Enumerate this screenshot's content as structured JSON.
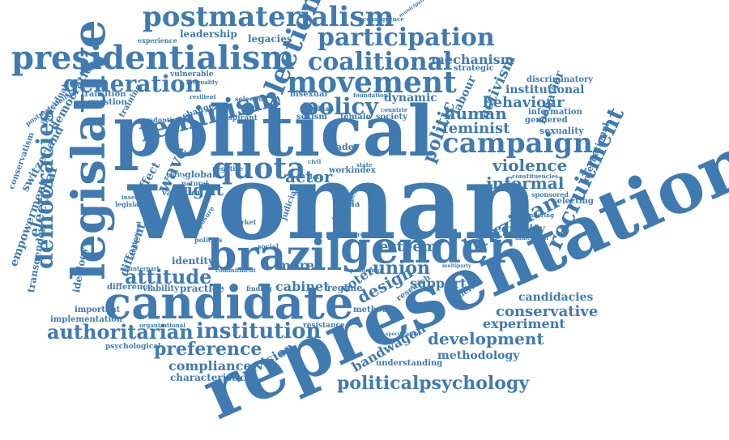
{
  "colors": {
    "word": "#3f7ab0",
    "background": "#ffffff"
  },
  "words": {
    "w_woman": "woman",
    "w_representation": "representation",
    "w_political": "political",
    "w_candidate": "candidate",
    "w_legislative": "legislative",
    "w_gender": "gender",
    "w_brazil": "brazil",
    "w_presidentialism": "presidentialism",
    "w_postmaterialism": "postmaterialism",
    "w_participation": "participation",
    "w_coalitional": "coalitional",
    "w_movement": "movement",
    "w_election": "election",
    "w_feminism": "feminism",
    "w_generation": "generation",
    "w_policy": "policy",
    "w_campaign": "campaign",
    "w_quota": "quota",
    "w_institution": "institution",
    "w_authoritarian": "authoritarian",
    "w_politicalpsychology": "politicalpsychology",
    "w_preference": "preference",
    "w_development": "development",
    "w_democracies": "democracies",
    "w_attitude": "attitude",
    "w_recruitment": "recruitment",
    "w_brazilian": "brazilian",
    "w_violence": "violence",
    "w_informal": "informal",
    "w_right": "right",
    "w_actor": "actor",
    "w_wave": "wave",
    "w_feminist": "feminist",
    "w_human": "human",
    "w_behaviour": "behaviour",
    "w_institutional": "institutional",
    "w_mechanism": "mechanism",
    "w_esteem": "esteem",
    "w_union": "union",
    "w_support": "support",
    "w_design": "design",
    "w_voter": "voter",
    "w_conservative": "conservative",
    "w_candidacies": "candidacies",
    "w_experiment": "experiment",
    "w_bandwagon": "bandwagon",
    "w_compliance": "compliance",
    "w_revision": "revision",
    "w_characteristic": "characteristic",
    "w_methodology": "methodology",
    "w_understanding": "understanding",
    "w_cabinet": "cabinet",
    "w_more": "more",
    "w_identity": "identity",
    "w_different": "different",
    "w_practice": "practice",
    "w_viability": "viability",
    "w_difference": "difference",
    "w_important": "important",
    "w_implementation": "implementation",
    "w_psychological": "psychological",
    "w_organizational": "organizational",
    "w_resistance": "resistance",
    "w_regime": "regime",
    "w_equality": "equality",
    "w_politic": "politic",
    "w_activism": "activism",
    "w_labour": "labour",
    "w_behavior": "behavior",
    "w_sexuality": "sexuality",
    "w_gendered": "gendered",
    "w_information": "information",
    "w_discriminatory": "discriminatory",
    "w_strategic": "strategic",
    "w_dynamic": "dynamic",
    "w_bisexual": "bisexual",
    "w_sexism": "sexism",
    "w_lesbian": "lesbian",
    "w_female": "female",
    "w_society": "society",
    "w_trade": "trade",
    "w_global": "global",
    "w_negative": "negative",
    "w_natural": "natural",
    "w_parity": "parity",
    "w_leadership": "leadership",
    "w_legacies": "legacies",
    "w_consequence": "consequence",
    "w_experience": "experience",
    "w_vulnerable": "vulnerable",
    "w_transition": "transition",
    "w_question": "question",
    "w_training": "training",
    "w_change": "change",
    "w_adoption": "adoption",
    "w_aspirant": "aspirant",
    "w_selection": "selection",
    "w_democratic": "democratic",
    "w_individual": "individual",
    "w_postmaterialist": "postmaterialist",
    "w_switzerland": "switzerland",
    "w_conservatism": "conservatism",
    "w_empowerment": "empowerment",
    "w_electoral": "electoral",
    "w_transgender": "transgender",
    "w_ideology": "ideology",
    "w_effect": "effect",
    "w_variation": "variation",
    "w_legislator": "legislator",
    "w_insecurity": "insecurity",
    "w_exposure": "exposure",
    "w_self": "self",
    "w_data": "data",
    "w_workindex": "workindex",
    "w_india": "india",
    "w_international": "international",
    "w_sponsored": "sponsored",
    "w_selecting": "selecting",
    "w_america": "america",
    "w_dimension": "dimension",
    "w_gendering": "gendering",
    "w_constituencies": "constituencies",
    "w_policies": "policies",
    "w_market": "market",
    "w_finding": "finding",
    "w_social": "social",
    "w_judicial": "judicial",
    "w_civil": "civil",
    "w_research": "research",
    "w_method": "method",
    "w_strength": "strength",
    "w_counterpart": "counterpart",
    "w_stigmatized": "stigmatized",
    "w_foundation": "foundation",
    "w_countrie": "countrie",
    "w_state": "state",
    "w_inequality": "inequality",
    "w_resilient": "resilient",
    "w_pandemic": "pandemic",
    "w_multiparty": "multiparty",
    "w_municipalities": "municipalities",
    "w_legacy": "legacy",
    "w_voting": "voting",
    "w_specification": "specification",
    "w_commitment": "commitment"
  }
}
